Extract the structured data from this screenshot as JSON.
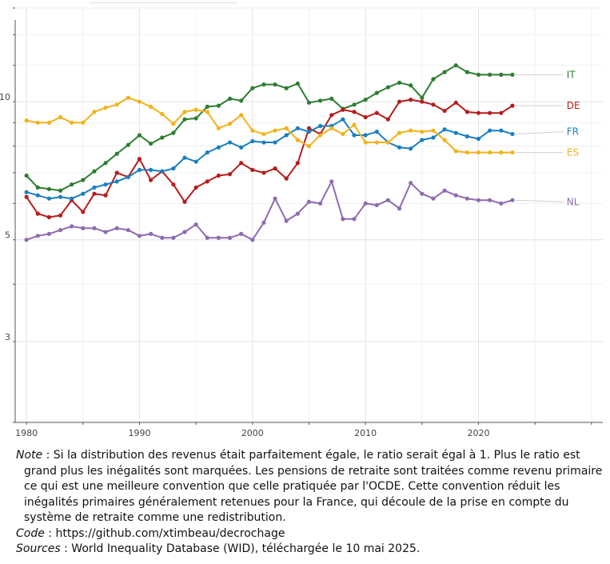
{
  "chart_data": {
    "type": "line",
    "y_scale": "log",
    "ylim": [
      2,
      16
    ],
    "xlim": [
      1979,
      2031
    ],
    "x_ticks": [
      1980,
      1990,
      2000,
      2010,
      2020
    ],
    "y_ticks": [
      3,
      5,
      10
    ],
    "grid": true,
    "legend": "end-of-line labels",
    "series": [
      {
        "name": "IT",
        "color": "#2e7d32",
        "x": [
          1980,
          1981,
          1982,
          1983,
          1984,
          1985,
          1986,
          1987,
          1988,
          1989,
          1990,
          1991,
          1992,
          1993,
          1994,
          1995,
          1996,
          1997,
          1998,
          1999,
          2000,
          2001,
          2002,
          2003,
          2004,
          2005,
          2006,
          2007,
          2008,
          2009,
          2010,
          2011,
          2012,
          2013,
          2014,
          2015,
          2016,
          2017,
          2018,
          2019,
          2020,
          2021,
          2022,
          2023
        ],
        "y": [
          6.9,
          6.5,
          6.45,
          6.4,
          6.6,
          6.75,
          7.05,
          7.35,
          7.7,
          8.05,
          8.45,
          8.1,
          8.35,
          8.55,
          9.15,
          9.2,
          9.75,
          9.8,
          10.15,
          10.05,
          10.7,
          10.9,
          10.9,
          10.7,
          10.95,
          9.95,
          10.05,
          10.15,
          9.65,
          9.85,
          10.1,
          10.45,
          10.75,
          11.0,
          10.85,
          10.2,
          11.2,
          11.6,
          12.0,
          11.6,
          11.45,
          11.45,
          11.45,
          11.45
        ]
      },
      {
        "name": "DE",
        "color": "#b71c1c",
        "x": [
          1980,
          1981,
          1982,
          1983,
          1984,
          1985,
          1986,
          1987,
          1988,
          1989,
          1990,
          1991,
          1992,
          1993,
          1994,
          1995,
          1996,
          1997,
          1998,
          1999,
          2000,
          2001,
          2002,
          2003,
          2004,
          2005,
          2006,
          2007,
          2008,
          2009,
          2010,
          2011,
          2012,
          2013,
          2014,
          2015,
          2016,
          2017,
          2018,
          2019,
          2020,
          2021,
          2022,
          2023
        ],
        "y": [
          6.2,
          5.7,
          5.6,
          5.65,
          6.1,
          5.75,
          6.3,
          6.25,
          7.0,
          6.85,
          7.5,
          6.75,
          7.05,
          6.6,
          6.05,
          6.5,
          6.7,
          6.9,
          6.95,
          7.35,
          7.1,
          7.0,
          7.15,
          6.8,
          7.35,
          8.75,
          8.5,
          9.35,
          9.6,
          9.5,
          9.25,
          9.45,
          9.15,
          10.0,
          10.1,
          10.0,
          9.85,
          9.55,
          9.95,
          9.5,
          9.45,
          9.45,
          9.45,
          9.8
        ]
      },
      {
        "name": "FR",
        "color": "#1a7fc1",
        "x": [
          1980,
          1981,
          1982,
          1983,
          1984,
          1985,
          1986,
          1987,
          1988,
          1989,
          1990,
          1991,
          1992,
          1993,
          1994,
          1995,
          1996,
          1997,
          1998,
          1999,
          2000,
          2001,
          2002,
          2003,
          2004,
          2005,
          2006,
          2007,
          2008,
          2009,
          2010,
          2011,
          2012,
          2013,
          2014,
          2015,
          2016,
          2017,
          2018,
          2019,
          2020,
          2021,
          2022,
          2023
        ],
        "y": [
          6.35,
          6.25,
          6.15,
          6.2,
          6.15,
          6.3,
          6.5,
          6.6,
          6.7,
          6.85,
          7.1,
          7.1,
          7.05,
          7.15,
          7.55,
          7.4,
          7.75,
          7.95,
          8.15,
          7.95,
          8.2,
          8.15,
          8.15,
          8.45,
          8.75,
          8.6,
          8.85,
          8.85,
          9.15,
          8.45,
          8.45,
          8.6,
          8.15,
          7.95,
          7.9,
          8.25,
          8.35,
          8.7,
          8.55,
          8.4,
          8.3,
          8.65,
          8.65,
          8.5
        ],
        "label_y": 8.6
      },
      {
        "name": "ES",
        "color": "#f2b21a",
        "x": [
          1980,
          1981,
          1982,
          1983,
          1984,
          1985,
          1986,
          1987,
          1988,
          1989,
          1990,
          1991,
          1992,
          1993,
          1994,
          1995,
          1996,
          1997,
          1998,
          1999,
          2000,
          2001,
          2002,
          2003,
          2004,
          2005,
          2006,
          2007,
          2008,
          2009,
          2010,
          2011,
          2012,
          2013,
          2014,
          2015,
          2016,
          2017,
          2018,
          2019,
          2020,
          2021,
          2022,
          2023
        ],
        "y": [
          9.1,
          9.0,
          9.0,
          9.25,
          9.0,
          9.0,
          9.5,
          9.7,
          9.85,
          10.2,
          10.0,
          9.75,
          9.4,
          8.95,
          9.5,
          9.6,
          9.5,
          8.75,
          8.95,
          9.35,
          8.65,
          8.5,
          8.65,
          8.75,
          8.25,
          8.0,
          8.45,
          8.75,
          8.5,
          8.9,
          8.15,
          8.15,
          8.15,
          8.55,
          8.65,
          8.6,
          8.65,
          8.25,
          7.8,
          7.75,
          7.75,
          7.75,
          7.75,
          7.75
        ],
        "label_y": 7.75
      },
      {
        "name": "NL",
        "color": "#8e6bb0",
        "x": [
          1980,
          1981,
          1982,
          1983,
          1984,
          1985,
          1986,
          1987,
          1988,
          1989,
          1990,
          1991,
          1992,
          1993,
          1994,
          1995,
          1996,
          1997,
          1998,
          1999,
          2000,
          2001,
          2002,
          2003,
          2004,
          2005,
          2006,
          2007,
          2008,
          2009,
          2010,
          2011,
          2012,
          2013,
          2014,
          2015,
          2016,
          2017,
          2018,
          2019,
          2020,
          2021,
          2022,
          2023
        ],
        "y": [
          5.0,
          5.1,
          5.15,
          5.25,
          5.35,
          5.3,
          5.3,
          5.2,
          5.3,
          5.25,
          5.1,
          5.15,
          5.05,
          5.05,
          5.2,
          5.4,
          5.05,
          5.05,
          5.05,
          5.15,
          5.0,
          5.45,
          6.15,
          5.5,
          5.7,
          6.05,
          6.0,
          6.7,
          5.55,
          5.55,
          6.0,
          5.95,
          6.1,
          5.85,
          6.65,
          6.3,
          6.15,
          6.4,
          6.25,
          6.15,
          6.1,
          6.1,
          6.0,
          6.1
        ],
        "label_y": 6.05
      }
    ]
  },
  "notes": {
    "note_lead": "Note",
    "note_text": " : Si la distribution des revenus était parfaitement égale, le ratio serait égal à 1. Plus le ratio est grand plus les inégalités sont marquées. Les pensions de retraite sont traitées comme revenu primaire ce qui est une meilleure convention que celle pratiquée par l'OCDE. Cette convention réduit les inégalités primaires généralement retenues pour la France, qui découle de la prise en compte du système de retraite comme une redistribution.",
    "code_lead": "Code",
    "code_text": " : https://github.com/xtimbeau/decrochage",
    "sources_lead": "Sources",
    "sources_text": " : World Inequality Database (WID), téléchargée le 10 mai 2025."
  }
}
